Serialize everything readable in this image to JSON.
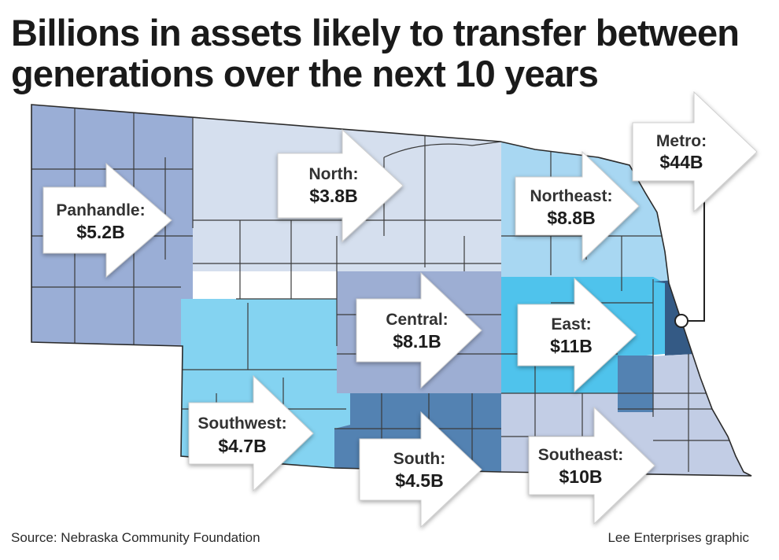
{
  "title_lines": [
    "Billions in assets likely to transfer between",
    "generations over the next 10 years"
  ],
  "source": "Source: Nebraska Community Foundation",
  "credit": "Lee Enterprises graphic",
  "regions": [
    {
      "id": "panhandle",
      "name": "Panhandle:",
      "value": "$5.2B",
      "color": "#9aaed6"
    },
    {
      "id": "north",
      "name": "North:",
      "value": "$3.8B",
      "color": "#d5dfee"
    },
    {
      "id": "northeast",
      "name": "Northeast:",
      "value": "$8.8B",
      "color": "#a8d7f2"
    },
    {
      "id": "metro",
      "name": "Metro:",
      "value": "$44B",
      "color": "#345a85"
    },
    {
      "id": "central",
      "name": "Central:",
      "value": "$8.1B",
      "color": "#9daed3"
    },
    {
      "id": "east",
      "name": "East:",
      "value": "$11B",
      "color": "#4fc3ec"
    },
    {
      "id": "southwest",
      "name": "Southwest:",
      "value": "$4.7B",
      "color": "#84d3f1"
    },
    {
      "id": "south",
      "name": "South:",
      "value": "$4.5B",
      "color": "#5382b2"
    },
    {
      "id": "southeast",
      "name": "Southeast:",
      "value": "$10B",
      "color": "#c2cde5"
    }
  ],
  "metro_marker": "Omaha-area dot"
}
